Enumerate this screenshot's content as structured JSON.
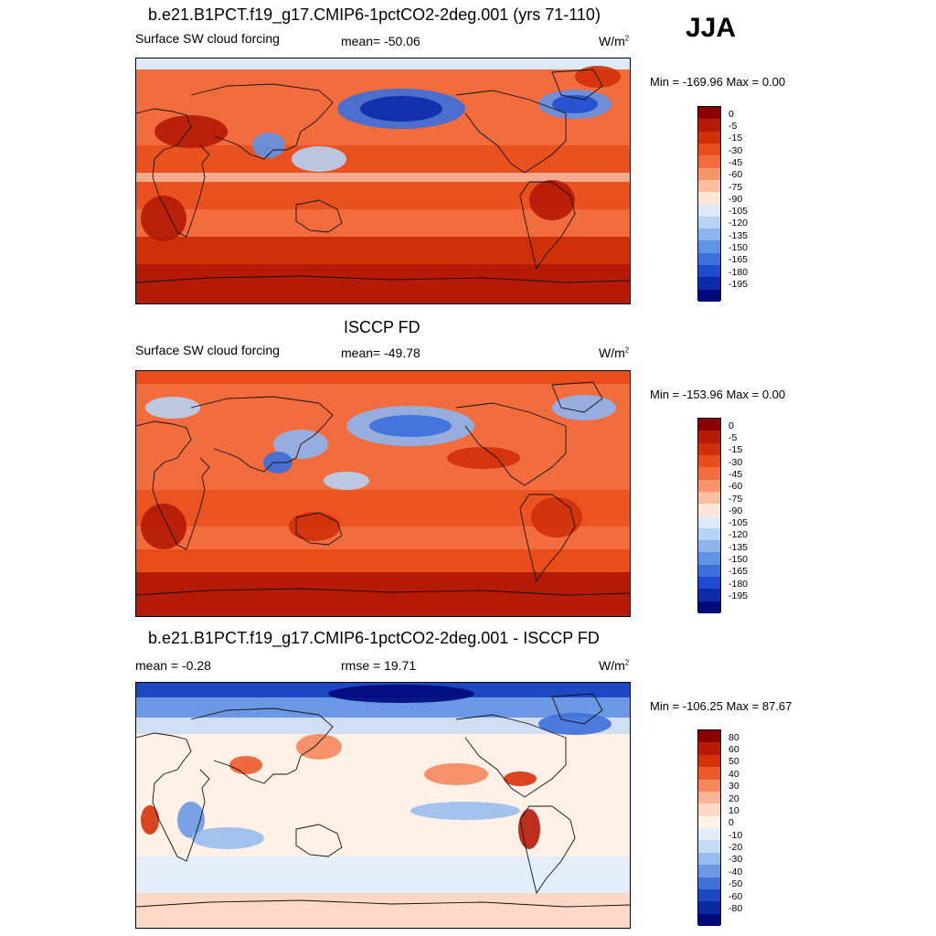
{
  "season": "JJA",
  "panels": [
    {
      "title": "b.e21.B1PCT.f19_g17.CMIP6-1pctCO2-2deg.001 (yrs 71-110)",
      "left_label": "Surface SW cloud forcing",
      "center_label": "mean= -50.06",
      "units": "W/m",
      "units_sup": "2",
      "minmax": "Min = -169.96 Max =   0.00",
      "colorbar_ticks": [
        "0",
        "-5",
        "-15",
        "-30",
        "-45",
        "-60",
        "-75",
        "-90",
        "-105",
        "-120",
        "-135",
        "-150",
        "-165",
        "-180",
        "-195"
      ]
    },
    {
      "title": "ISCCP FD",
      "left_label": "Surface SW cloud forcing",
      "center_label": "mean= -49.78",
      "units": "W/m",
      "units_sup": "2",
      "minmax": "Min = -153.96 Max =   0.00",
      "colorbar_ticks": [
        "0",
        "-5",
        "-15",
        "-30",
        "-45",
        "-60",
        "-75",
        "-90",
        "-105",
        "-120",
        "-135",
        "-150",
        "-165",
        "-180",
        "-195"
      ]
    },
    {
      "title": "b.e21.B1PCT.f19_g17.CMIP6-1pctCO2-2deg.001 - ISCCP FD",
      "left_label": "mean =  -0.28",
      "center_label": "rmse =  19.71",
      "units": "W/m",
      "units_sup": "2",
      "minmax": "Min = -106.25 Max =  87.67",
      "colorbar_ticks": [
        "80",
        "60",
        "50",
        "40",
        "30",
        "20",
        "10",
        "0",
        "-10",
        "-20",
        "-30",
        "-40",
        "-50",
        "-60",
        "-80"
      ]
    }
  ],
  "colors": {
    "forcing_scale": [
      "#8b0000",
      "#b41a06",
      "#d03008",
      "#e84d1a",
      "#f26c3e",
      "#f8946a",
      "#fbbfa0",
      "#fde6d8",
      "#dceaf8",
      "#b6d2f4",
      "#8cb5ee",
      "#5f93e6",
      "#3a6fdc",
      "#1f4ccf",
      "#0d2aa8",
      "#000a7a"
    ],
    "diff_scale": [
      "#8b0000",
      "#b41a06",
      "#d6320a",
      "#ec5a2a",
      "#f5865c",
      "#fab394",
      "#fcd9c6",
      "#fff1e8",
      "#e4eefa",
      "#c4dbf5",
      "#98bcee",
      "#6a98e4",
      "#3e70d8",
      "#1d48c4",
      "#0a28a0",
      "#00087a"
    ]
  }
}
